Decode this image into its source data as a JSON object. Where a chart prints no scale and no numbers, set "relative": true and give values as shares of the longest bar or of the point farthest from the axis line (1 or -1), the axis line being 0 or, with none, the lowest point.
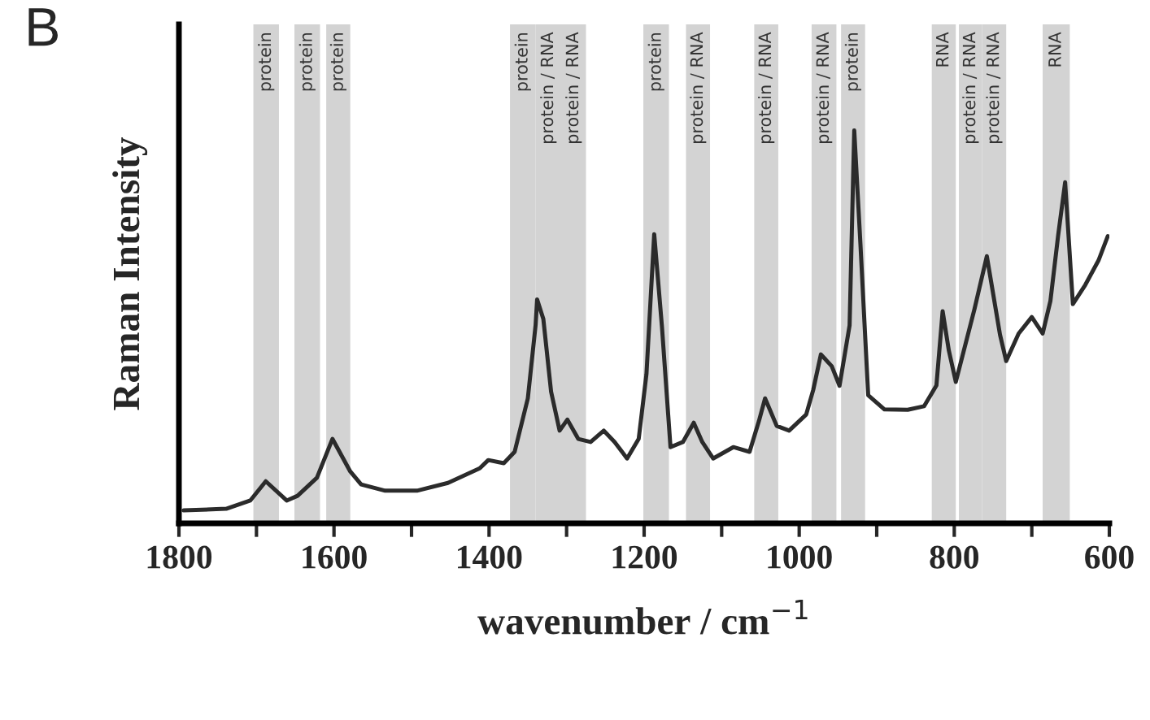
{
  "chart_data": {
    "type": "line",
    "relative": true,
    "xlabel": "wavenumber / cm$^{−1}$",
    "ylabel": "Raman Intensity",
    "annotations": [
      "B"
    ],
    "xlim": [
      1800,
      600
    ],
    "xticks": [
      1800,
      {
        "value": 1700,
        "label": null
      },
      1600,
      {
        "value": 1500,
        "label": null
      },
      1400,
      {
        "value": 1300,
        "label": null
      },
      1200,
      {
        "value": 1100,
        "label": null
      },
      1000,
      {
        "value": 900,
        "label": null
      },
      800,
      {
        "value": 700,
        "label": null
      },
      600
    ],
    "grid": false,
    "legend": false,
    "marker": "none",
    "line_style": "solid",
    "series": [
      {
        "color": "#2b2b2b",
        "x": [
          1794,
          1739,
          1708,
          1688,
          1661,
          1647,
          1622,
          1602,
          1579,
          1565,
          1534,
          1493,
          1453,
          1412,
          1401,
          1381,
          1367,
          1350,
          1340,
          1338,
          1330,
          1320,
          1309,
          1299,
          1285,
          1269,
          1252,
          1238,
          1222,
          1207,
          1197,
          1187,
          1177,
          1166,
          1150,
          1136,
          1125,
          1111,
          1085,
          1064,
          1052,
          1044,
          1029,
          1013,
          991,
          982,
          972,
          958,
          948,
          935,
          929,
          921,
          911,
          890,
          860,
          839,
          823,
          815,
          807,
          798,
          774,
          758,
          741,
          733,
          717,
          700,
          686,
          676,
          666,
          657,
          647,
          631,
          614,
          602
        ],
        "values": [
          0.033,
          0.037,
          0.058,
          0.107,
          0.058,
          0.07,
          0.116,
          0.215,
          0.132,
          0.099,
          0.083,
          0.083,
          0.103,
          0.14,
          0.161,
          0.153,
          0.182,
          0.318,
          0.504,
          0.57,
          0.52,
          0.335,
          0.236,
          0.264,
          0.215,
          0.207,
          0.236,
          0.207,
          0.165,
          0.215,
          0.38,
          0.736,
          0.5,
          0.194,
          0.207,
          0.256,
          0.207,
          0.165,
          0.194,
          0.182,
          0.26,
          0.318,
          0.248,
          0.236,
          0.277,
          0.339,
          0.43,
          0.4,
          0.35,
          0.504,
          1.0,
          0.71,
          0.326,
          0.29,
          0.289,
          0.298,
          0.351,
          0.54,
          0.44,
          0.36,
          0.545,
          0.68,
          0.48,
          0.413,
          0.483,
          0.525,
          0.483,
          0.566,
          0.733,
          0.868,
          0.558,
          0.607,
          0.669,
          0.731
        ]
      }
    ],
    "bands": [
      {
        "axis": "x",
        "from": 1704,
        "to": 1671,
        "label": "protein",
        "color": "#d3d3d3"
      },
      {
        "axis": "x",
        "from": 1651,
        "to": 1618,
        "label": "protein",
        "color": "#d3d3d3"
      },
      {
        "axis": "x",
        "from": 1610,
        "to": 1579,
        "label": "protein",
        "color": "#d3d3d3"
      },
      {
        "axis": "x",
        "from": 1373,
        "to": 1340,
        "label": "protein",
        "color": "#d3d3d3"
      },
      {
        "axis": "x",
        "from": 1340,
        "to": 1307,
        "label": "protein / RNA",
        "color": "#d3d3d3"
      },
      {
        "axis": "x",
        "from": 1307,
        "to": 1275,
        "label": "protein / RNA",
        "color": "#d3d3d3"
      },
      {
        "axis": "x",
        "from": 1201,
        "to": 1168,
        "label": "protein",
        "color": "#d3d3d3"
      },
      {
        "axis": "x",
        "from": 1146,
        "to": 1115,
        "label": "protein / RNA",
        "color": "#d3d3d3"
      },
      {
        "axis": "x",
        "from": 1058,
        "to": 1027,
        "label": "protein / RNA",
        "color": "#d3d3d3"
      },
      {
        "axis": "x",
        "from": 984,
        "to": 952,
        "label": "protein / RNA",
        "color": "#d3d3d3"
      },
      {
        "axis": "x",
        "from": 946,
        "to": 915,
        "label": "protein",
        "color": "#d3d3d3"
      },
      {
        "axis": "x",
        "from": 829,
        "to": 798,
        "label": "RNA",
        "color": "#d3d3d3"
      },
      {
        "axis": "x",
        "from": 794,
        "to": 764,
        "label": "protein / RNA",
        "color": "#d3d3d3"
      },
      {
        "axis": "x",
        "from": 764,
        "to": 733,
        "label": "protein / RNA",
        "color": "#d3d3d3"
      },
      {
        "axis": "x",
        "from": 686,
        "to": 651,
        "label": "RNA",
        "color": "#d3d3d3"
      }
    ]
  }
}
